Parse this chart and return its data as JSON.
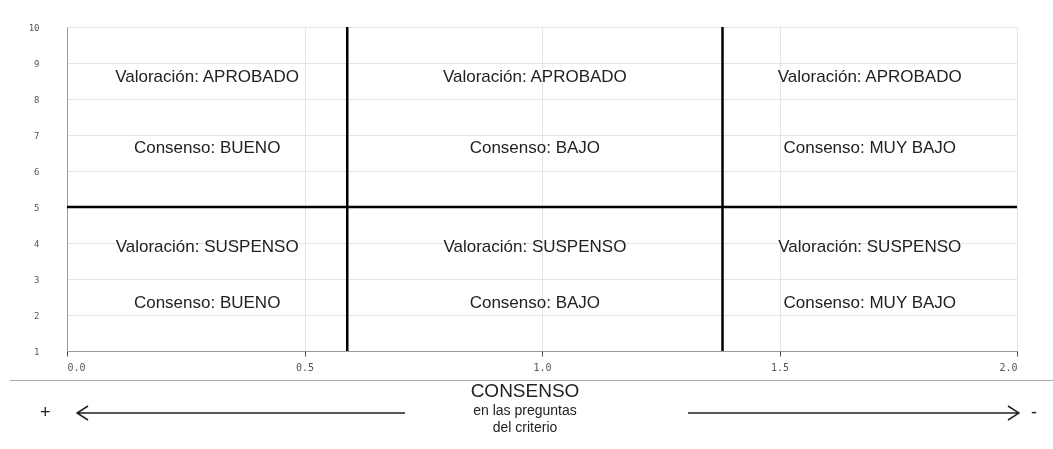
{
  "chart_data": {
    "type": "scatter",
    "xlabel": "CONSENSO",
    "xlim": [
      0,
      2
    ],
    "ylim": [
      1,
      10
    ],
    "xticks": [
      {
        "value": 0,
        "label": "0.0"
      },
      {
        "value": 0.5,
        "label": "0.5"
      },
      {
        "value": 1,
        "label": "1.0"
      },
      {
        "value": 1.5,
        "label": "1.5"
      },
      {
        "value": 2,
        "label": "2.0"
      }
    ],
    "yticks": [
      1,
      2,
      3,
      4,
      5,
      6,
      7,
      8,
      9,
      10
    ],
    "grid": true,
    "ref_lines": [
      {
        "axis": "x",
        "value": 0.59,
        "color": "#000000"
      },
      {
        "axis": "x",
        "value": 1.38,
        "color": "#000000"
      },
      {
        "axis": "y",
        "value": 5,
        "color": "#000000"
      }
    ],
    "annotations": [
      "Valoración: APROBADO",
      "Consenso: BUENO",
      "Valoración: SUSPENSO",
      "Consenso: BUENO",
      "Valoración: APROBADO",
      "Consenso: BAJO",
      "Valoración: SUSPENSO",
      "Consenso: BAJO",
      "Valoración: APROBADO",
      "Consenso: MUY BAJO",
      "Valoración: SUSPENSO",
      "Consenso: MUY BAJO",
      "en las preguntas del criterio",
      "+",
      "-"
    ]
  }
}
